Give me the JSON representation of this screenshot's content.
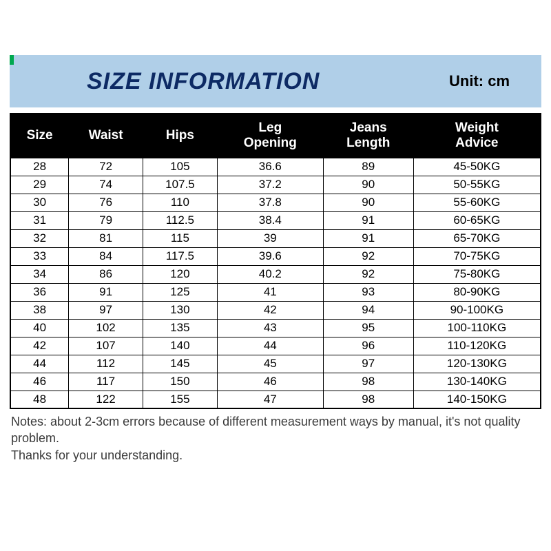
{
  "banner": {
    "title": "SIZE INFORMATION",
    "unit_label": "Unit: cm",
    "background_color": "#b0cfe8",
    "text_color": "#0d2a64",
    "title_fontsize": 34,
    "unit_fontsize": 22,
    "accent_color": "#00a84f"
  },
  "table": {
    "type": "table",
    "header_bg": "#000000",
    "header_text_color": "#ffffff",
    "cell_bg": "#ffffff",
    "cell_text_color": "#000000",
    "border_color": "#000000",
    "header_fontsize": 19,
    "cell_fontsize": 17,
    "column_widths_pct": [
      11,
      14,
      14,
      20,
      17,
      24
    ],
    "columns": [
      "Size",
      "Waist",
      "Hips",
      "Leg Opening",
      "Jeans Length",
      "Weight Advice"
    ],
    "rows": [
      [
        "28",
        "72",
        "105",
        "36.6",
        "89",
        "45-50KG"
      ],
      [
        "29",
        "74",
        "107.5",
        "37.2",
        "90",
        "50-55KG"
      ],
      [
        "30",
        "76",
        "110",
        "37.8",
        "90",
        "55-60KG"
      ],
      [
        "31",
        "79",
        "112.5",
        "38.4",
        "91",
        "60-65KG"
      ],
      [
        "32",
        "81",
        "115",
        "39",
        "91",
        "65-70KG"
      ],
      [
        "33",
        "84",
        "117.5",
        "39.6",
        "92",
        "70-75KG"
      ],
      [
        "34",
        "86",
        "120",
        "40.2",
        "92",
        "75-80KG"
      ],
      [
        "36",
        "91",
        "125",
        "41",
        "93",
        "80-90KG"
      ],
      [
        "38",
        "97",
        "130",
        "42",
        "94",
        "90-100KG"
      ],
      [
        "40",
        "102",
        "135",
        "43",
        "95",
        "100-110KG"
      ],
      [
        "42",
        "107",
        "140",
        "44",
        "96",
        "110-120KG"
      ],
      [
        "44",
        "112",
        "145",
        "45",
        "97",
        "120-130KG"
      ],
      [
        "46",
        "117",
        "150",
        "46",
        "98",
        "130-140KG"
      ],
      [
        "48",
        "122",
        "155",
        "47",
        "98",
        "140-150KG"
      ]
    ]
  },
  "notes": {
    "line1": "Notes: about 2-3cm errors because of different measurement ways by manual, it's not quality problem.",
    "line2": "Thanks for your understanding.",
    "fontsize": 18,
    "color": "#3a3a3a"
  }
}
